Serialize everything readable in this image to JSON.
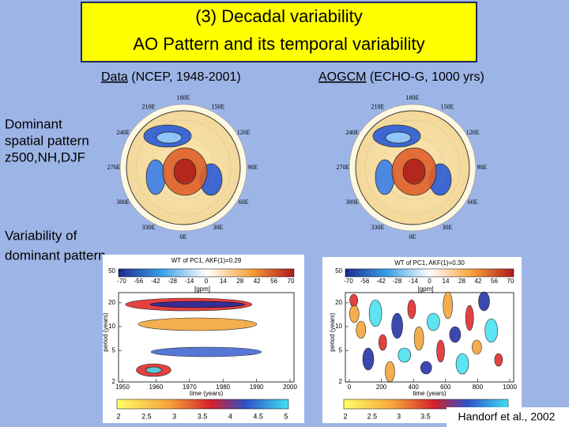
{
  "title": {
    "line1": "(3) Decadal variability",
    "line2": "AO Pattern and its temporal variability"
  },
  "side_labels": {
    "spatial": [
      "Dominant",
      "spatial pattern",
      "z500,NH,DJF"
    ],
    "temporal": [
      "Variability of",
      "dominant pattern"
    ]
  },
  "maps": [
    {
      "header_link": "Data",
      "header_rest": " (NCEP, 1948-2001)"
    },
    {
      "header_link": "AOGCM",
      "header_rest": " (ECHO-G, 1000 yrs)"
    }
  ],
  "longitudes": [
    "180E",
    "150E",
    "120E",
    "90E",
    "60E",
    "30E",
    "0E",
    "330E",
    "300E",
    "270E",
    "240E",
    "210E"
  ],
  "panels": [
    {
      "title": "WT of PC1, AKF(1)=0.29",
      "gpm_ticks": [
        -70,
        -56,
        -42,
        -28,
        -14,
        0,
        14,
        28,
        42,
        56,
        70
      ],
      "unit": "[gpm]",
      "ylabel": "period (years)",
      "yticks": [
        50,
        20,
        10,
        5,
        2
      ],
      "xticks": [
        1950,
        1960,
        1970,
        1980,
        1990,
        2000
      ],
      "xlabel": "time (years)",
      "colorbar_ticks": [
        2,
        2.5,
        3,
        3.5,
        4,
        4.5,
        5
      ]
    },
    {
      "title": "WT of PC1, AKF(1)=0.30",
      "gpm_ticks": [
        -70,
        -56,
        -42,
        -28,
        -14,
        0,
        14,
        28,
        42,
        56,
        70
      ],
      "unit": "[gpm]",
      "ylabel": "period (years)",
      "yticks": [
        50,
        20,
        10,
        5,
        2
      ],
      "xticks": [
        0,
        200,
        400,
        600,
        800,
        1000
      ],
      "xlabel": "time (years)",
      "colorbar_ticks": [
        2,
        2.5,
        3,
        3.5
      ]
    }
  ],
  "citation": "Handorf et al., 2002"
}
